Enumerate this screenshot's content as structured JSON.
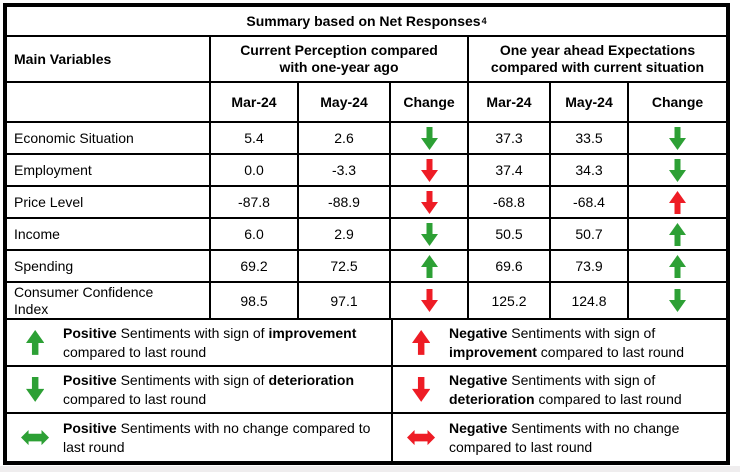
{
  "title": {
    "text": "Summary based on Net Responses",
    "superscript": "4"
  },
  "colors": {
    "green": "#2DA035",
    "red": "#EE1C25"
  },
  "table": {
    "main_variables_label": "Main Variables",
    "group_headers": [
      "Current Perception compared with one-year ago",
      "One year ahead Expectations compared with current situation"
    ],
    "sub_headers": [
      "Mar-24",
      "May-24",
      "Change",
      "Mar-24",
      "May-24",
      "Change"
    ],
    "rows": [
      {
        "label": "Economic Situation",
        "cp_mar": "5.4",
        "cp_may": "2.6",
        "cp_change": "green-down",
        "ex_mar": "37.3",
        "ex_may": "33.5",
        "ex_change": "green-down"
      },
      {
        "label": "Employment",
        "cp_mar": "0.0",
        "cp_may": "-3.3",
        "cp_change": "red-down",
        "ex_mar": "37.4",
        "ex_may": "34.3",
        "ex_change": "green-down"
      },
      {
        "label": "Price Level",
        "cp_mar": "-87.8",
        "cp_may": "-88.9",
        "cp_change": "red-down",
        "ex_mar": "-68.8",
        "ex_may": "-68.4",
        "ex_change": "red-up"
      },
      {
        "label": "Income",
        "cp_mar": "6.0",
        "cp_may": "2.9",
        "cp_change": "green-down",
        "ex_mar": "50.5",
        "ex_may": "50.7",
        "ex_change": "green-up"
      },
      {
        "label": "Spending",
        "cp_mar": "69.2",
        "cp_may": "72.5",
        "cp_change": "green-up",
        "ex_mar": "69.6",
        "ex_may": "73.9",
        "ex_change": "green-up"
      },
      {
        "label": "Consumer Confidence Index",
        "cp_mar": "98.5",
        "cp_may": "97.1",
        "cp_change": "red-down",
        "ex_mar": "125.2",
        "ex_may": "124.8",
        "ex_change": "green-down"
      }
    ]
  },
  "legend": {
    "entries": [
      {
        "arrow": "green-up",
        "segments": [
          {
            "text": "Positive",
            "bold": true
          },
          {
            "text": " Sentiments with sign of ",
            "bold": false
          },
          {
            "text": "improvement",
            "bold": true
          },
          {
            "text": " compared to last round",
            "bold": false
          }
        ]
      },
      {
        "arrow": "red-up",
        "segments": [
          {
            "text": "Negative",
            "bold": true
          },
          {
            "text": " Sentiments with sign of ",
            "bold": false
          },
          {
            "text": "improvement",
            "bold": true
          },
          {
            "text": " compared to last round",
            "bold": false
          }
        ]
      },
      {
        "arrow": "green-down",
        "segments": [
          {
            "text": "Positive",
            "bold": true
          },
          {
            "text": " Sentiments with sign of ",
            "bold": false
          },
          {
            "text": "deterioration",
            "bold": true
          },
          {
            "text": " compared to last round",
            "bold": false
          }
        ]
      },
      {
        "arrow": "red-down",
        "segments": [
          {
            "text": "Negative",
            "bold": true
          },
          {
            "text": " Sentiments with sign of ",
            "bold": false
          },
          {
            "text": "deterioration",
            "bold": true
          },
          {
            "text": " compared to last round",
            "bold": false
          }
        ]
      },
      {
        "arrow": "green-lr",
        "segments": [
          {
            "text": "Positive",
            "bold": true
          },
          {
            "text": " Sentiments with no change compared to last round",
            "bold": false
          }
        ]
      },
      {
        "arrow": "red-lr",
        "segments": [
          {
            "text": "Negative",
            "bold": true
          },
          {
            "text": " Sentiments with no change compared to last round",
            "bold": false
          }
        ]
      }
    ]
  }
}
